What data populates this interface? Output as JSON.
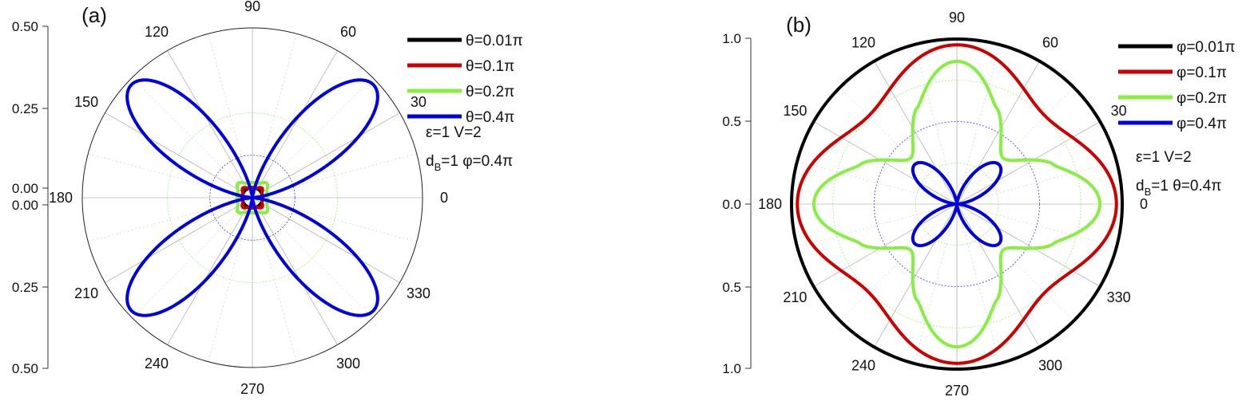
{
  "figure": {
    "colors": {
      "black": "#000000",
      "red": "#cc0000",
      "green": "#88ee44",
      "blue": "#0000dd",
      "grid": "#9a9a9a"
    },
    "angle_labels": [
      "0",
      "30",
      "60",
      "90",
      "120",
      "150",
      "180",
      "210",
      "240",
      "270",
      "300",
      "330"
    ]
  },
  "chart_data": [
    {
      "type": "polar-line",
      "panel_label": "(a)",
      "radial_tick_labels": [
        "0.50",
        "0.25",
        "0.00",
        "0.00",
        "0.25",
        "0.50"
      ],
      "rlim": [
        0,
        0.5
      ],
      "angle_unit": "degrees",
      "grid": true,
      "legend_position": "top-right",
      "annotations": {
        "line1": "ε=1 V=2",
        "line2_prefix": "d",
        "line2_sub": "B",
        "line2_suffix": "=1 φ=0.4π"
      },
      "series": [
        {
          "name": "θ=0.01π",
          "color": "#000000",
          "function": "constant",
          "params": {
            "r": 0.03
          }
        },
        {
          "name": "θ=0.1π",
          "color": "#cc0000",
          "function": "lobed",
          "params": {
            "r0": 0.03,
            "amp": 0.01,
            "width": 0.25
          }
        },
        {
          "name": "θ=0.2π",
          "color": "#88ee44",
          "function": "lobed",
          "params": {
            "r0": 0.045,
            "amp": 0.015,
            "width": 0.25
          }
        },
        {
          "name": "θ=0.4π",
          "color": "#0000dd",
          "function": "rose",
          "params": {
            "amp": 0.487,
            "p": 2.8,
            "peak_deg": 43
          }
        }
      ]
    },
    {
      "type": "polar-line",
      "panel_label": "(b)",
      "radial_tick_labels": [
        "1.0",
        "0.5",
        "0.0",
        "0.5",
        "1.0"
      ],
      "rlim": [
        0,
        1.0
      ],
      "angle_unit": "degrees",
      "grid": true,
      "legend_position": "top-right",
      "annotations": {
        "line1": "ε=1 V=2",
        "line2_prefix": "d",
        "line2_sub": "B",
        "line2_suffix": "=1 θ=0.4π"
      },
      "series": [
        {
          "name": "φ=0.01π",
          "color": "#000000",
          "function": "constant",
          "params": {
            "r": 1.0
          }
        },
        {
          "name": "φ=0.1π",
          "color": "#cc0000",
          "function": "cos4",
          "params": {
            "base": 0.86,
            "amp": 0.105,
            "p": 1
          }
        },
        {
          "name": "φ=0.2π",
          "color": "#88ee44",
          "function": "cos4",
          "params": {
            "base": 0.63,
            "amp": 0.235,
            "p": 1.3
          }
        },
        {
          "name": "φ=0.4π",
          "color": "#0000dd",
          "function": "rose",
          "params": {
            "amp": 0.35,
            "p": 2.2,
            "peak_deg": 43
          }
        }
      ]
    }
  ]
}
